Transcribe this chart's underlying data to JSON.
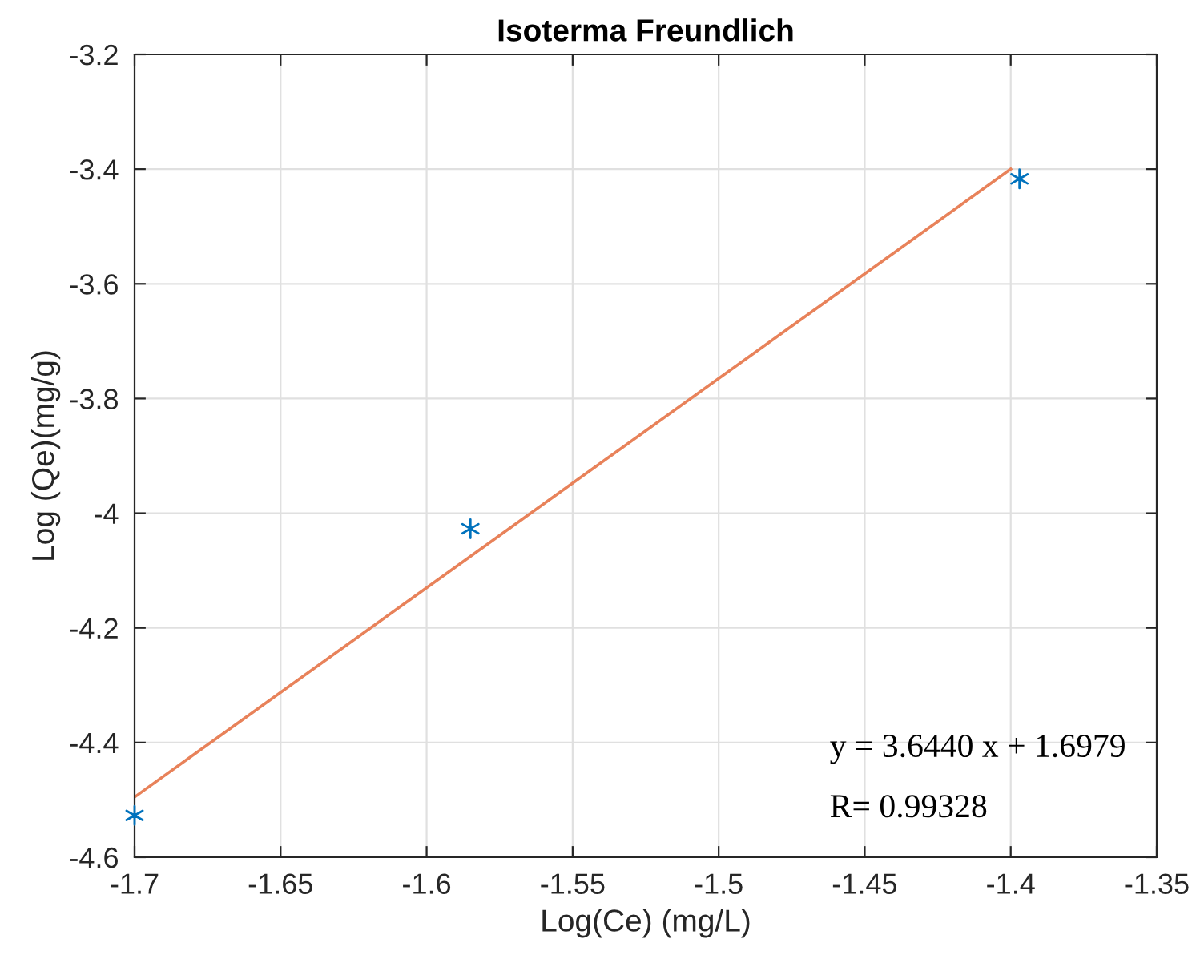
{
  "chart_data": {
    "type": "scatter",
    "title": "Isoterma Freundlich",
    "xlabel": "Log(Ce) (mg/L)",
    "ylabel": "Log (Qe)(mg/g)",
    "series": [
      {
        "color": "#0072bd",
        "marker": "cross",
        "x": [
          -1.7,
          -1.585,
          -1.397
        ],
        "values": [
          -4.527,
          -4.027,
          -3.417
        ]
      },
      {
        "type": "line",
        "color": "#e8825a",
        "marker": "none",
        "line_style": "solid",
        "x": [
          -1.7,
          -1.4
        ],
        "values": [
          -4.495,
          -3.4
        ]
      }
    ],
    "xlim": [
      -1.7,
      -1.35
    ],
    "xticks": [
      -1.7,
      -1.65,
      -1.6,
      -1.55,
      -1.5,
      -1.45,
      -1.4,
      -1.35
    ],
    "ylim": [
      -4.6,
      -3.2
    ],
    "yticks": [
      -4.6,
      -4.4,
      -4.2,
      -4,
      -3.8,
      -3.6,
      -3.4,
      -3.2
    ],
    "grid": true,
    "annotations": [
      "y = 3.6440 x + 1.6979",
      "R= 0.99328"
    ]
  }
}
